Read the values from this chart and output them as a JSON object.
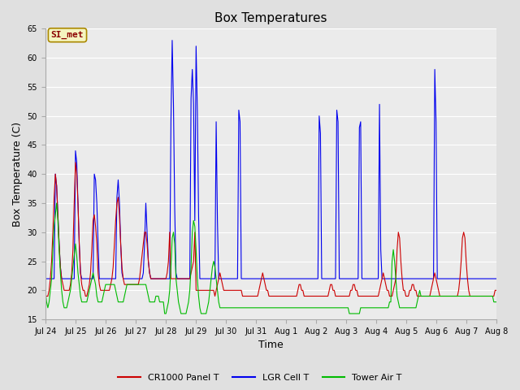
{
  "title": "Box Temperatures",
  "ylabel": "Box Temperature (C)",
  "xlabel": "Time",
  "ylim": [
    15,
    65
  ],
  "fig_bg_color": "#e0e0e0",
  "plot_bg_color": "#ebebeb",
  "grid_color": "#ffffff",
  "legend_labels": [
    "CR1000 Panel T",
    "LGR Cell T",
    "Tower Air T"
  ],
  "legend_colors": [
    "#cc0000",
    "#0000ee",
    "#00bb00"
  ],
  "watermark_text": "SI_met",
  "x_tick_labels": [
    "Jul 24",
    "Jul 25",
    "Jul 26",
    "Jul 27",
    "Jul 28",
    "Jul 29",
    "Jul 30",
    "Jul 31",
    "Aug 1",
    "Aug 2",
    "Aug 3",
    "Aug 4",
    "Aug 5",
    "Aug 6",
    "Aug 7",
    "Aug 8"
  ],
  "red_data": [
    19,
    19,
    19,
    20,
    22,
    25,
    30,
    36,
    40,
    38,
    33,
    28,
    24,
    22,
    21,
    20,
    20,
    20,
    20,
    20,
    21,
    23,
    27,
    35,
    42,
    40,
    35,
    28,
    23,
    21,
    20,
    20,
    19,
    19,
    20,
    21,
    23,
    27,
    32,
    33,
    31,
    28,
    23,
    21,
    20,
    20,
    20,
    20,
    20,
    20,
    20,
    20,
    21,
    22,
    24,
    28,
    32,
    35,
    36,
    33,
    28,
    24,
    22,
    21,
    21,
    21,
    21,
    21,
    21,
    21,
    21,
    21,
    21,
    21,
    21,
    22,
    24,
    26,
    28,
    30,
    30,
    28,
    25,
    23,
    22,
    22,
    22,
    22,
    22,
    22,
    22,
    22,
    22,
    22,
    22,
    22,
    22,
    23,
    25,
    30,
    22,
    22,
    22,
    22,
    22,
    22,
    22,
    22,
    22,
    22,
    22,
    22,
    22,
    22,
    22,
    22,
    23,
    24,
    25,
    30,
    20,
    20,
    20,
    20,
    20,
    20,
    20,
    20,
    20,
    20,
    20,
    20,
    20,
    20,
    20,
    19,
    20,
    21,
    22,
    23,
    22,
    21,
    20,
    20,
    20,
    20,
    20,
    20,
    20,
    20,
    20,
    20,
    20,
    20,
    20,
    20,
    20,
    19,
    19,
    19,
    19,
    19,
    19,
    19,
    19,
    19,
    19,
    19,
    19,
    19,
    20,
    21,
    22,
    23,
    22,
    21,
    20,
    20,
    19,
    19,
    19,
    19,
    19,
    19,
    19,
    19,
    19,
    19,
    19,
    19,
    19,
    19,
    19,
    19,
    19,
    19,
    19,
    19,
    19,
    19,
    19,
    20,
    21,
    21,
    20,
    20,
    19,
    19,
    19,
    19,
    19,
    19,
    19,
    19,
    19,
    19,
    19,
    19,
    19,
    19,
    19,
    19,
    19,
    19,
    19,
    19,
    20,
    21,
    21,
    20,
    20,
    19,
    19,
    19,
    19,
    19,
    19,
    19,
    19,
    19,
    19,
    19,
    19,
    20,
    20,
    21,
    21,
    20,
    20,
    19,
    19,
    19,
    19,
    19,
    19,
    19,
    19,
    19,
    19,
    19,
    19,
    19,
    19,
    19,
    19,
    19,
    20,
    21,
    22,
    23,
    22,
    21,
    20,
    20,
    19,
    19,
    19,
    20,
    21,
    22,
    27,
    30,
    29,
    25,
    22,
    20,
    20,
    19,
    19,
    19,
    20,
    20,
    21,
    21,
    20,
    20,
    19,
    19,
    19,
    19,
    19,
    19,
    19,
    19,
    19,
    19,
    19,
    20,
    21,
    22,
    23,
    22,
    21,
    20,
    19,
    19,
    19,
    19,
    19,
    19,
    19,
    19,
    19,
    19,
    19,
    19,
    19,
    19,
    19,
    20,
    22,
    25,
    29,
    30,
    29,
    25,
    22,
    20,
    19,
    19,
    19,
    19,
    19,
    19,
    19,
    19,
    19,
    19,
    19,
    19,
    19,
    19,
    19,
    19,
    19,
    19,
    19,
    19,
    20,
    20
  ],
  "blue_data": [
    22,
    22,
    22,
    22,
    22,
    22,
    22,
    22,
    40,
    38,
    33,
    28,
    24,
    22,
    22,
    22,
    22,
    22,
    22,
    22,
    22,
    22,
    22,
    22,
    44,
    42,
    35,
    28,
    23,
    22,
    22,
    22,
    22,
    22,
    22,
    22,
    22,
    22,
    22,
    40,
    39,
    35,
    28,
    22,
    22,
    22,
    22,
    22,
    22,
    22,
    22,
    22,
    22,
    22,
    22,
    22,
    22,
    36,
    39,
    35,
    28,
    23,
    22,
    22,
    22,
    22,
    22,
    22,
    22,
    22,
    22,
    22,
    22,
    22,
    22,
    22,
    22,
    22,
    23,
    28,
    35,
    30,
    25,
    23,
    22,
    22,
    22,
    22,
    22,
    22,
    22,
    22,
    22,
    22,
    22,
    22,
    22,
    22,
    22,
    22,
    49,
    63,
    52,
    34,
    23,
    22,
    22,
    22,
    22,
    22,
    22,
    22,
    22,
    22,
    22,
    22,
    53,
    58,
    52,
    32,
    62,
    51,
    33,
    22,
    22,
    22,
    22,
    22,
    22,
    22,
    22,
    22,
    22,
    22,
    22,
    22,
    49,
    32,
    22,
    22,
    22,
    22,
    22,
    22,
    22,
    22,
    22,
    22,
    22,
    22,
    22,
    22,
    22,
    22,
    51,
    49,
    22,
    22,
    22,
    22,
    22,
    22,
    22,
    22,
    22,
    22,
    22,
    22,
    22,
    22,
    22,
    22,
    22,
    22,
    22,
    22,
    22,
    22,
    22,
    22,
    22,
    22,
    22,
    22,
    22,
    22,
    22,
    22,
    22,
    22,
    22,
    22,
    22,
    22,
    22,
    22,
    22,
    22,
    22,
    22,
    22,
    22,
    22,
    22,
    22,
    22,
    22,
    22,
    22,
    22,
    22,
    22,
    22,
    22,
    22,
    22,
    22,
    22,
    50,
    47,
    22,
    22,
    22,
    22,
    22,
    22,
    22,
    22,
    22,
    22,
    22,
    22,
    51,
    49,
    22,
    22,
    22,
    22,
    22,
    22,
    22,
    22,
    22,
    22,
    22,
    22,
    22,
    22,
    22,
    22,
    48,
    49,
    22,
    22,
    22,
    22,
    22,
    22,
    22,
    22,
    22,
    22,
    22,
    22,
    22,
    22,
    52,
    27,
    22,
    22,
    22,
    22,
    22,
    22,
    22,
    22,
    22,
    22,
    22,
    22,
    22,
    22,
    22,
    22,
    22,
    22,
    22,
    22,
    22,
    22,
    22,
    22,
    22,
    22,
    22,
    22,
    22,
    22,
    22,
    22,
    22,
    22,
    22,
    22,
    22,
    22,
    22,
    22,
    22,
    22,
    58,
    49,
    22,
    22,
    22,
    22,
    22,
    22,
    22,
    22,
    22,
    22,
    22,
    22,
    22,
    22,
    22,
    22,
    22,
    22,
    22,
    22,
    22,
    22,
    22,
    22,
    22,
    22,
    22,
    22,
    22,
    22,
    22,
    22,
    22,
    22,
    22,
    22,
    22,
    22,
    22,
    22,
    22,
    22,
    22,
    22,
    22,
    22,
    22,
    22
  ],
  "green_data": [
    20,
    18,
    17,
    18,
    20,
    22,
    27,
    31,
    33,
    35,
    32,
    27,
    23,
    20,
    18,
    17,
    17,
    17,
    18,
    19,
    20,
    22,
    24,
    26,
    28,
    26,
    23,
    21,
    19,
    18,
    18,
    18,
    18,
    18,
    19,
    20,
    21,
    22,
    23,
    22,
    21,
    19,
    18,
    18,
    18,
    18,
    19,
    20,
    21,
    21,
    21,
    21,
    21,
    21,
    21,
    21,
    20,
    19,
    18,
    18,
    18,
    18,
    18,
    19,
    20,
    21,
    21,
    21,
    21,
    21,
    21,
    21,
    21,
    21,
    21,
    21,
    21,
    21,
    21,
    21,
    21,
    20,
    19,
    18,
    18,
    18,
    18,
    18,
    19,
    19,
    19,
    18,
    18,
    18,
    18,
    16,
    16,
    17,
    18,
    20,
    24,
    29,
    30,
    28,
    22,
    20,
    18,
    17,
    16,
    16,
    16,
    16,
    16,
    17,
    18,
    20,
    24,
    30,
    32,
    31,
    27,
    22,
    19,
    17,
    16,
    16,
    16,
    16,
    16,
    17,
    18,
    20,
    22,
    24,
    25,
    24,
    22,
    20,
    18,
    17,
    17,
    17,
    17,
    17,
    17,
    17,
    17,
    17,
    17,
    17,
    17,
    17,
    17,
    17,
    17,
    17,
    17,
    17,
    17,
    17,
    17,
    17,
    17,
    17,
    17,
    17,
    17,
    17,
    17,
    17,
    17,
    17,
    17,
    17,
    17,
    17,
    17,
    17,
    17,
    17,
    17,
    17,
    17,
    17,
    17,
    17,
    17,
    17,
    17,
    17,
    17,
    17,
    17,
    17,
    17,
    17,
    17,
    17,
    17,
    17,
    17,
    17,
    17,
    17,
    17,
    17,
    17,
    17,
    17,
    17,
    17,
    17,
    17,
    17,
    17,
    17,
    17,
    17,
    17,
    17,
    17,
    17,
    17,
    17,
    17,
    17,
    17,
    17,
    17,
    17,
    17,
    17,
    17,
    17,
    17,
    17,
    17,
    17,
    17,
    17,
    17,
    17,
    16,
    16,
    16,
    16,
    16,
    16,
    16,
    16,
    16,
    17,
    17,
    17,
    17,
    17,
    17,
    17,
    17,
    17,
    17,
    17,
    17,
    17,
    17,
    17,
    17,
    17,
    17,
    17,
    17,
    17,
    17,
    17,
    18,
    18,
    25,
    27,
    25,
    22,
    19,
    18,
    17,
    17,
    17,
    17,
    17,
    17,
    17,
    17,
    17,
    17,
    17,
    17,
    17,
    17,
    18,
    19,
    20,
    19,
    19,
    19,
    19,
    19,
    19,
    19,
    19,
    19,
    19,
    19,
    19,
    19,
    19,
    19,
    19,
    19,
    19,
    19,
    19,
    19,
    19,
    19,
    19,
    19,
    19,
    19,
    19,
    19,
    19,
    19,
    19,
    19,
    19,
    19,
    19,
    19,
    19,
    19,
    19,
    19,
    19,
    19,
    19,
    19,
    19,
    19,
    19,
    19,
    19,
    19,
    19,
    19,
    19,
    19,
    19,
    19,
    19,
    18,
    18,
    18
  ]
}
